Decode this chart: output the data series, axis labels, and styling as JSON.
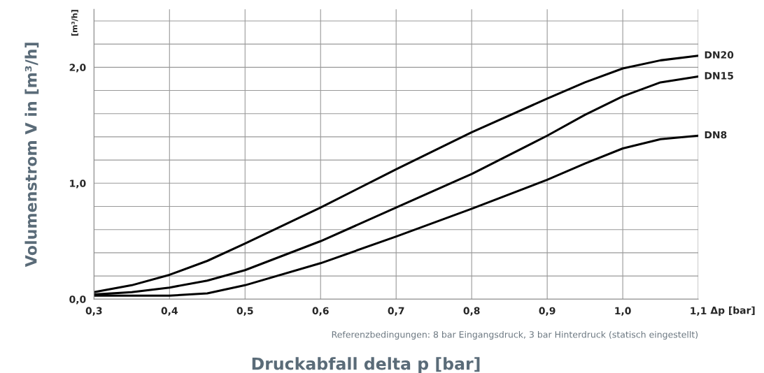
{
  "chart_data": {
    "type": "line",
    "xlabel": "Druckabfall delta p [bar]",
    "ylabel": "Volumenstrom V in [m³/h]",
    "annotations": [
      "[m³/h]",
      "Δp [bar]",
      "Referenzbedingungen: 8 bar Eingangsdruck, 3 bar Hinterdruck (statisch eingestellt)"
    ],
    "x": [
      0.3,
      0.35,
      0.4,
      0.45,
      0.5,
      0.6,
      0.7,
      0.8,
      0.9,
      0.95,
      1.0,
      1.05,
      1.1
    ],
    "series": [
      {
        "name": "DN20",
        "color": "#000000",
        "values": [
          0.06,
          0.12,
          0.21,
          0.33,
          0.48,
          0.79,
          1.12,
          1.44,
          1.73,
          1.87,
          1.99,
          2.06,
          2.1
        ]
      },
      {
        "name": "DN15",
        "color": "#000000",
        "values": [
          0.04,
          0.06,
          0.1,
          0.16,
          0.25,
          0.5,
          0.79,
          1.08,
          1.41,
          1.59,
          1.75,
          1.87,
          1.92
        ]
      },
      {
        "name": "DN8",
        "color": "#000000",
        "values": [
          0.03,
          0.03,
          0.03,
          0.05,
          0.12,
          0.31,
          0.54,
          0.78,
          1.03,
          1.17,
          1.3,
          1.38,
          1.41
        ]
      }
    ],
    "xlim": [
      0.3,
      1.1
    ],
    "xticks": [
      {
        "value": 0.3,
        "label": "0,3"
      },
      {
        "value": 0.4,
        "label": "0,4"
      },
      {
        "value": 0.5,
        "label": "0,5"
      },
      {
        "value": 0.6,
        "label": "0,6"
      },
      {
        "value": 0.7,
        "label": "0,7"
      },
      {
        "value": 0.8,
        "label": "0,8"
      },
      {
        "value": 0.9,
        "label": "0,9"
      },
      {
        "value": 1.0,
        "label": "1,0"
      },
      {
        "value": 1.1,
        "label": "1,1"
      }
    ],
    "ylim": [
      0,
      2.5
    ],
    "yticks": [
      {
        "value": 0,
        "label": "0,0"
      },
      {
        "value": 0.2,
        "label": null
      },
      {
        "value": 0.4,
        "label": null
      },
      {
        "value": 0.6,
        "label": null
      },
      {
        "value": 0.8,
        "label": null
      },
      {
        "value": 1.0,
        "label": "1,0"
      },
      {
        "value": 1.2,
        "label": null
      },
      {
        "value": 1.4,
        "label": null
      },
      {
        "value": 1.6,
        "label": null
      },
      {
        "value": 1.8,
        "label": null
      },
      {
        "value": 2.0,
        "label": "2,0"
      },
      {
        "value": 2.2,
        "label": null
      },
      {
        "value": 2.4,
        "label": null
      }
    ],
    "grid": true,
    "legend": false,
    "line_style": "solid",
    "marker": "none"
  }
}
